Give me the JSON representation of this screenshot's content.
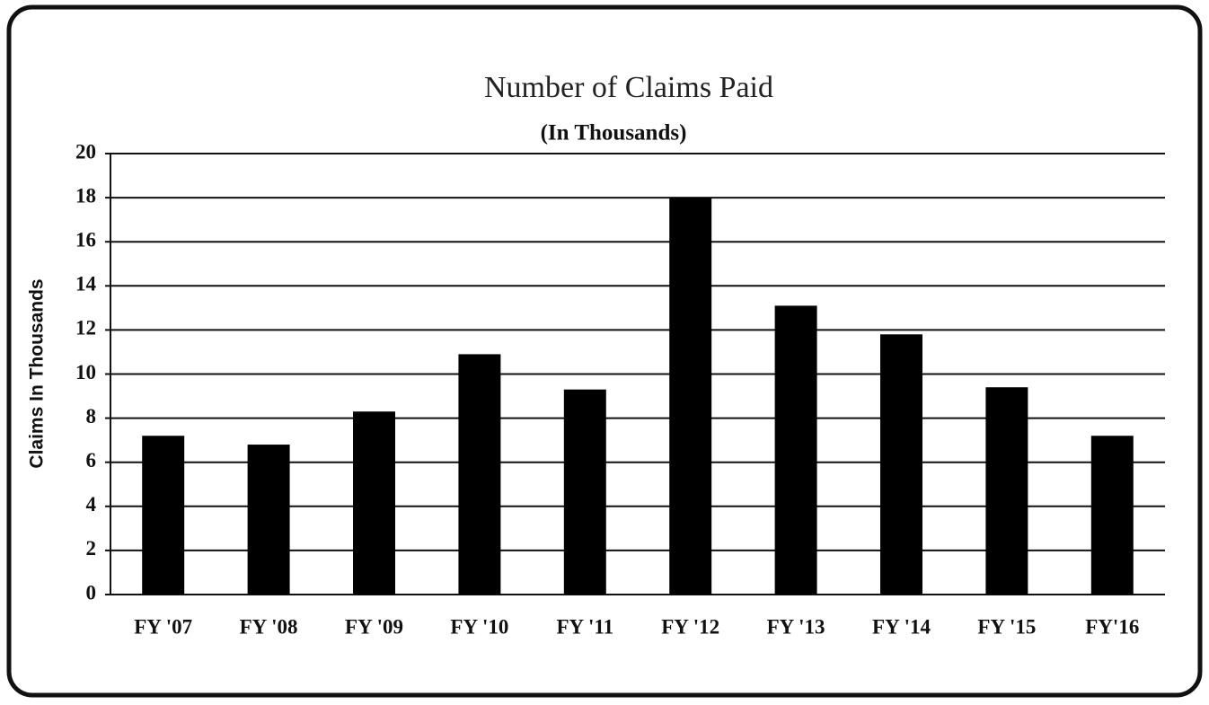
{
  "chart_data": {
    "type": "bar",
    "title": "Number of Claims Paid",
    "subtitle": "(In Thousands)",
    "y_label": "Claims In Thousands",
    "categories": [
      "FY '07",
      "FY '08",
      "FY '09",
      "FY '10",
      "FY '11",
      "FY '12",
      "FY '13",
      "FY '14",
      "FY '15",
      "FY'16"
    ],
    "values": [
      7.2,
      6.8,
      8.3,
      10.9,
      9.3,
      18.0,
      13.1,
      11.8,
      9.4,
      7.2
    ],
    "color": "#000000",
    "ylim": [
      0,
      20
    ],
    "yticks": [
      0,
      2,
      4,
      6,
      8,
      10,
      12,
      14,
      16,
      18,
      20
    ],
    "grid": true
  }
}
